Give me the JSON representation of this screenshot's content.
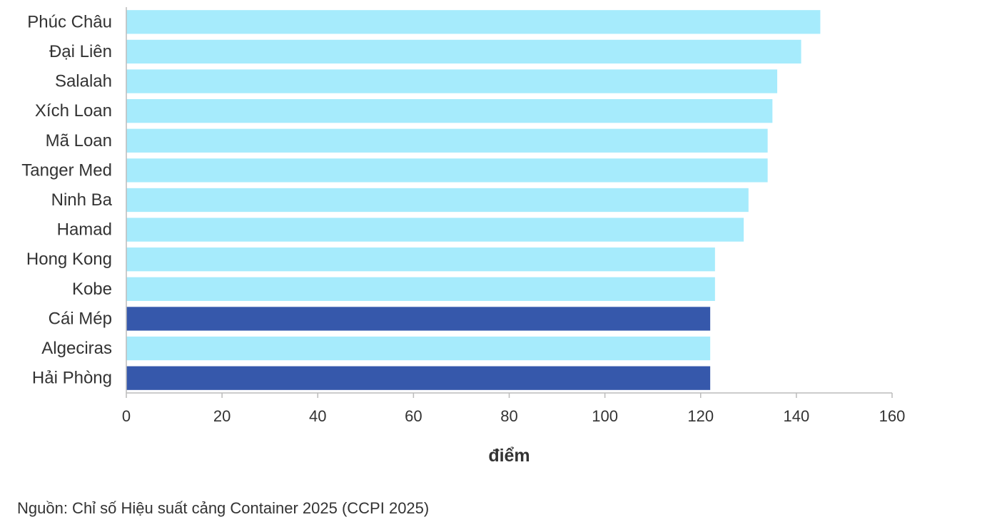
{
  "chart_data": {
    "type": "bar",
    "orientation": "horizontal",
    "categories": [
      "Phúc Châu",
      "Đại Liên",
      "Salalah",
      "Xích Loan",
      "Mã Loan",
      "Tanger Med",
      "Ninh Ba",
      "Hamad",
      "Hong Kong",
      "Kobe",
      "Cái Mép",
      "Algeciras",
      "Hải Phòng"
    ],
    "values": [
      145,
      141,
      136,
      135,
      134,
      134,
      130,
      129,
      123,
      123,
      122,
      122,
      122
    ],
    "highlighted": [
      "Cái Mép",
      "Hải Phòng"
    ],
    "xlabel": "điểm",
    "ylabel": "",
    "xlim": [
      0,
      160
    ],
    "xticks": [
      0,
      20,
      40,
      60,
      80,
      100,
      120,
      140,
      160
    ],
    "grid": false,
    "colors": {
      "default": "#a6ebfc",
      "highlight": "#3658ab"
    }
  },
  "source": "Nguồn: Chỉ số Hiệu suất cảng Container 2025 (CCPI 2025)"
}
